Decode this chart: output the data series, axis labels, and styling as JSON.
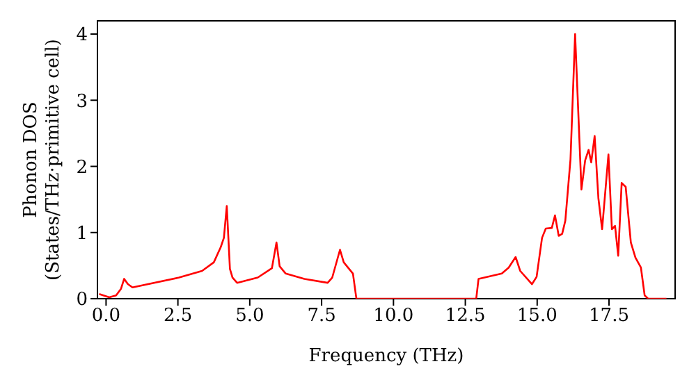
{
  "chart_data": {
    "type": "line",
    "xlabel": "Frequency (THz)",
    "ylabel": "Phonon DOS\n(States/THz·primitive cell)",
    "xlim": [
      -0.3,
      19.8
    ],
    "ylim": [
      0,
      4.2
    ],
    "xticks": [
      {
        "value": 0,
        "label": "0.0"
      },
      {
        "value": 2.5,
        "label": "2.5"
      },
      {
        "value": 5,
        "label": "5.0"
      },
      {
        "value": 7.5,
        "label": "7.5"
      },
      {
        "value": 10,
        "label": "10.0"
      },
      {
        "value": 12.5,
        "label": "12.5"
      },
      {
        "value": 15,
        "label": "15.0"
      },
      {
        "value": 17.5,
        "label": "17.5"
      }
    ],
    "yticks": [
      0,
      1,
      2,
      3,
      4
    ],
    "grid": false,
    "legend": false,
    "marker": "none",
    "line_style": "solid",
    "series": [
      {
        "color": "#ff0000",
        "x": [
          -0.24,
          0.11,
          0.35,
          0.52,
          0.63,
          0.76,
          0.92,
          2.54,
          3.34,
          3.75,
          3.99,
          4.1,
          4.2,
          4.31,
          4.4,
          4.56,
          5.28,
          5.77,
          5.93,
          6.04,
          6.25,
          6.9,
          7.71,
          7.87,
          8.14,
          8.27,
          8.59,
          8.71,
          12.88,
          12.96,
          13.77,
          14.01,
          14.25,
          14.41,
          14.82,
          14.98,
          15.17,
          15.3,
          15.51,
          15.62,
          15.75,
          15.87,
          15.98,
          16.16,
          16.32,
          16.54,
          16.67,
          16.79,
          16.88,
          17.0,
          17.13,
          17.26,
          17.48,
          17.6,
          17.71,
          17.82,
          17.94,
          18.08,
          18.26,
          18.42,
          18.61,
          18.74,
          18.86,
          19.5
        ],
        "values": [
          0.07,
          0.02,
          0.05,
          0.15,
          0.3,
          0.22,
          0.17,
          0.32,
          0.42,
          0.55,
          0.78,
          0.92,
          1.4,
          0.45,
          0.32,
          0.24,
          0.32,
          0.46,
          0.85,
          0.49,
          0.38,
          0.3,
          0.24,
          0.32,
          0.74,
          0.55,
          0.38,
          0,
          0,
          0.3,
          0.38,
          0.47,
          0.63,
          0.42,
          0.22,
          0.33,
          0.92,
          1.06,
          1.07,
          1.26,
          0.95,
          0.98,
          1.18,
          2.11,
          4.0,
          1.65,
          2.09,
          2.25,
          2.06,
          2.46,
          1.52,
          1.05,
          2.18,
          1.05,
          1.1,
          0.65,
          1.75,
          1.69,
          0.85,
          0.62,
          0.47,
          0.05,
          0,
          0
        ]
      }
    ]
  }
}
